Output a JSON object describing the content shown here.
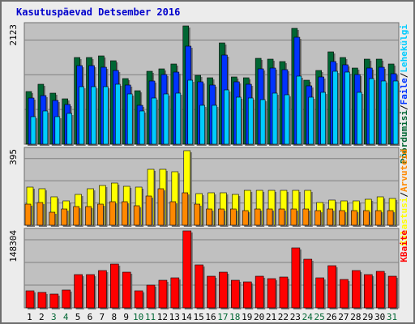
{
  "title": "Kasutuspäevad Detsember 2016",
  "colors": {
    "hits": "#006633",
    "files": "#0033ff",
    "pages": "#00ccff",
    "visits": "#ffff00",
    "sites": "#ff8800",
    "kbytes": "#ff0000",
    "weekend_label": "#006633",
    "weekday_label": "#000000"
  },
  "chart_data": [
    {
      "type": "bar",
      "panel": "top",
      "ytick": "2123",
      "ylim": [
        0,
        2123
      ],
      "legend": [
        "Pöördumisi",
        "Faile",
        "Lehekülgi"
      ],
      "legend_sep": "/",
      "categories": [
        "1",
        "2",
        "3",
        "4",
        "5",
        "6",
        "7",
        "8",
        "9",
        "10",
        "11",
        "12",
        "13",
        "14",
        "15",
        "16",
        "17",
        "18",
        "19",
        "20",
        "21",
        "22",
        "23",
        "24",
        "25",
        "26",
        "27",
        "28",
        "29",
        "30",
        "31"
      ],
      "weekend": [
        false,
        false,
        true,
        true,
        false,
        false,
        false,
        false,
        false,
        true,
        true,
        false,
        false,
        false,
        false,
        false,
        true,
        true,
        false,
        false,
        false,
        false,
        false,
        true,
        true,
        false,
        false,
        false,
        false,
        false,
        true
      ],
      "series": [
        {
          "name": "Pöördumisi",
          "color_key": "hits",
          "values": [
            926,
            1060,
            897,
            805,
            1542,
            1542,
            1560,
            1473,
            1168,
            942,
            1285,
            1337,
            1427,
            2099,
            1218,
            1176,
            1795,
            1189,
            1177,
            1515,
            1512,
            1456,
            2053,
            1138,
            1301,
            1639,
            1542,
            1348,
            1505,
            1512,
            1426
          ]
        },
        {
          "name": "Faile",
          "color_key": "files",
          "values": [
            811,
            861,
            779,
            705,
            1394,
            1394,
            1368,
            1304,
            1048,
            692,
            1112,
            1236,
            1282,
            1729,
            1111,
            1045,
            1585,
            1101,
            1059,
            1336,
            1344,
            1326,
            1890,
            1032,
            1188,
            1465,
            1400,
            1240,
            1351,
            1366,
            1241
          ]
        },
        {
          "name": "Lehekülgi",
          "color_key": "pages",
          "values": [
            484,
            584,
            484,
            542,
            1016,
            1016,
            1016,
            1060,
            891,
            590,
            817,
            884,
            910,
            1135,
            691,
            682,
            955,
            838,
            817,
            786,
            910,
            876,
            1206,
            835,
            923,
            1294,
            1283,
            913,
            1163,
            1121,
            1112
          ]
        }
      ]
    },
    {
      "type": "bar",
      "panel": "middle",
      "ytick": "395",
      "ylim": [
        0,
        395
      ],
      "legend": [
        "Külastusi",
        "Arvuteid"
      ],
      "legend_sep": "/",
      "categories": [
        "1",
        "2",
        "3",
        "4",
        "5",
        "6",
        "7",
        "8",
        "9",
        "10",
        "11",
        "12",
        "13",
        "14",
        "15",
        "16",
        "17",
        "18",
        "19",
        "20",
        "21",
        "22",
        "23",
        "24",
        "25",
        "26",
        "27",
        "28",
        "29",
        "30",
        "31"
      ],
      "series": [
        {
          "name": "Külastusi",
          "color_key": "visits",
          "values": [
            196,
            188,
            145,
            128,
            158,
            188,
            205,
            219,
            201,
            196,
            290,
            290,
            279,
            387,
            163,
            167,
            167,
            159,
            180,
            180,
            180,
            180,
            180,
            180,
            117,
            132,
            128,
            128,
            133,
            145,
            138
          ]
        },
        {
          "name": "Arvuteid",
          "color_key": "sites",
          "values": [
            109,
            116,
            66,
            82,
            95,
            95,
            109,
            120,
            120,
            102,
            150,
            188,
            120,
            167,
            109,
            82,
            82,
            82,
            75,
            82,
            82,
            82,
            82,
            82,
            75,
            82,
            75,
            74,
            75,
            75,
            75
          ]
        }
      ]
    },
    {
      "type": "bar",
      "panel": "bottom",
      "ytick": "148304",
      "ylim": [
        0,
        148304
      ],
      "legend": [
        "KBaite"
      ],
      "categories": [
        "1",
        "2",
        "3",
        "4",
        "5",
        "6",
        "7",
        "8",
        "9",
        "10",
        "11",
        "12",
        "13",
        "14",
        "15",
        "16",
        "17",
        "18",
        "19",
        "20",
        "21",
        "22",
        "23",
        "24",
        "25",
        "26",
        "27",
        "28",
        "29",
        "30",
        "31"
      ],
      "series": [
        {
          "name": "KBaite",
          "color_key": "kbytes",
          "values": [
            33000,
            30000,
            27000,
            34000,
            64000,
            64000,
            71000,
            84000,
            68000,
            32000,
            44000,
            52000,
            57000,
            146000,
            82000,
            60000,
            68000,
            53000,
            50000,
            61000,
            55000,
            59000,
            114000,
            92000,
            57000,
            80000,
            54000,
            71000,
            63000,
            69000,
            61000
          ]
        }
      ]
    }
  ]
}
